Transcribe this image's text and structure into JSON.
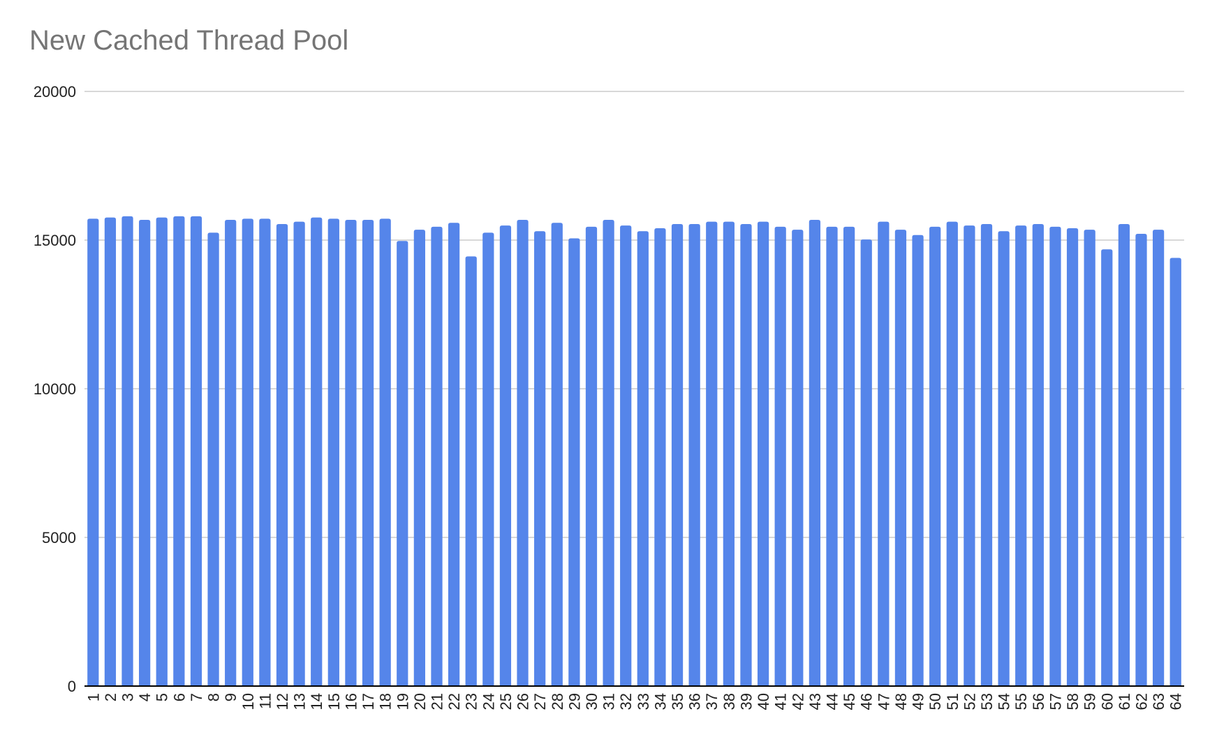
{
  "chart_data": {
    "type": "bar",
    "title": "New Cached Thread Pool",
    "xlabel": "",
    "ylabel": "",
    "ylim": [
      0,
      20000
    ],
    "yticks": [
      0,
      5000,
      10000,
      15000,
      20000
    ],
    "grid": true,
    "legend": "none",
    "bar_color": "#5585ea",
    "gridline_color": "#cccccc",
    "axis_color": "#000000",
    "categories": [
      "1",
      "2",
      "3",
      "4",
      "5",
      "6",
      "7",
      "8",
      "9",
      "10",
      "11",
      "12",
      "13",
      "14",
      "15",
      "16",
      "17",
      "18",
      "19",
      "20",
      "21",
      "22",
      "23",
      "24",
      "25",
      "26",
      "27",
      "28",
      "29",
      "30",
      "31",
      "32",
      "33",
      "34",
      "35",
      "36",
      "37",
      "38",
      "39",
      "40",
      "41",
      "42",
      "43",
      "44",
      "45",
      "46",
      "47",
      "48",
      "49",
      "50",
      "51",
      "52",
      "53",
      "54",
      "55",
      "56",
      "57",
      "58",
      "59",
      "60",
      "61",
      "62",
      "63",
      "64"
    ],
    "values": [
      15720,
      15760,
      15800,
      15680,
      15760,
      15800,
      15800,
      15250,
      15680,
      15720,
      15720,
      15540,
      15620,
      15760,
      15720,
      15680,
      15680,
      15720,
      14970,
      15350,
      15450,
      15580,
      14450,
      15250,
      15490,
      15680,
      15300,
      15580,
      15060,
      15450,
      15680,
      15490,
      15300,
      15400,
      15540,
      15540,
      15620,
      15620,
      15540,
      15620,
      15450,
      15350,
      15680,
      15450,
      15450,
      15020,
      15620,
      15350,
      15170,
      15450,
      15620,
      15490,
      15540,
      15300,
      15490,
      15540,
      15450,
      15400,
      15350,
      14690,
      15540,
      15210,
      15350,
      14400
    ]
  }
}
